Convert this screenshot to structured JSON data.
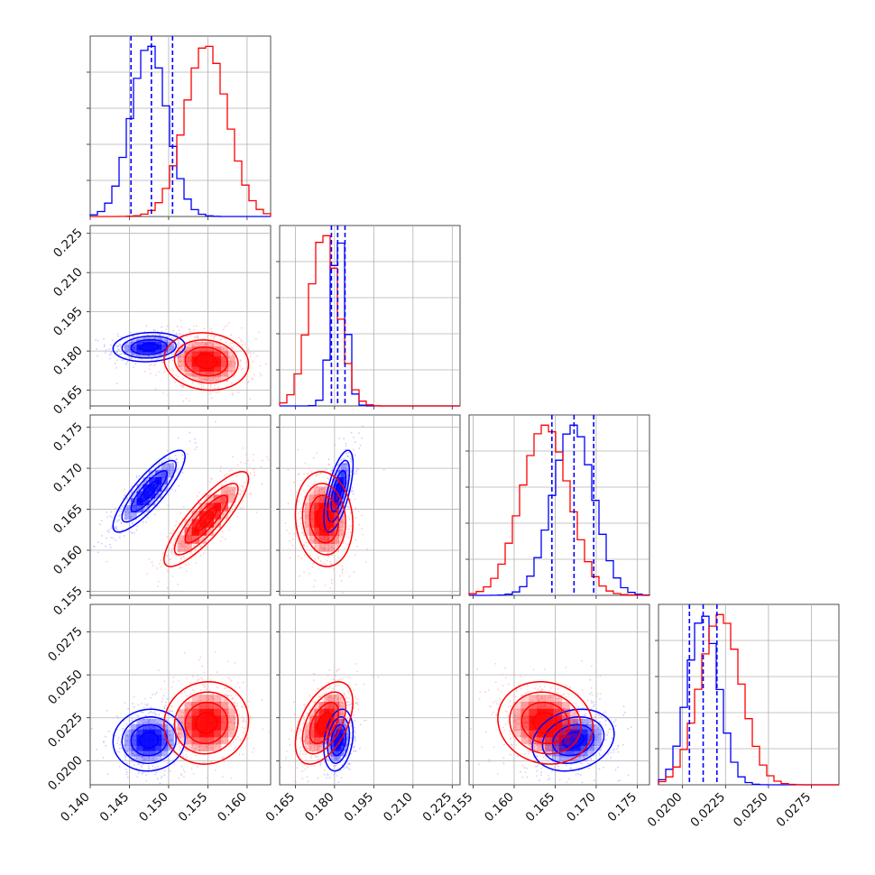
{
  "chart_data": {
    "type": "corner",
    "series": [
      {
        "name": "",
        "color": "#0000ff",
        "mean": [
          0.1475,
          0.1815,
          0.1672,
          0.0212
        ],
        "std": [
          0.0023,
          0.0028,
          0.0025,
          0.0009
        ]
      },
      {
        "name": "",
        "color": "#ff0000",
        "mean": [
          0.1548,
          0.176,
          0.1638,
          0.0222
        ],
        "std": [
          0.0027,
          0.0055,
          0.0029,
          0.0012
        ]
      }
    ],
    "quantile_lines": {
      "color": "#0000ff",
      "values": [
        [
          0.1452,
          0.1478,
          0.1505
        ],
        [
          0.1788,
          0.1812,
          0.184
        ],
        [
          0.1646,
          0.1673,
          0.1697
        ],
        [
          0.0204,
          0.0212,
          0.022
        ]
      ]
    },
    "panels": [
      {
        "row": 1,
        "col": 0,
        "corr_blue": 0.1,
        "corr_red": -0.1
      },
      {
        "row": 2,
        "col": 0,
        "corr_blue": 0.85,
        "corr_red": 0.85
      },
      {
        "row": 2,
        "col": 1,
        "corr_blue": 0.65,
        "corr_red": -0.1
      },
      {
        "row": 3,
        "col": 0,
        "corr_blue": 0.05,
        "corr_red": 0.05
      },
      {
        "row": 3,
        "col": 1,
        "corr_blue": 0.25,
        "corr_red": 0.5
      },
      {
        "row": 3,
        "col": 2,
        "corr_blue": 0.2,
        "corr_red": -0.1
      }
    ],
    "axes": [
      {
        "range": [
          0.14,
          0.163
        ],
        "ticks": [
          "0.140",
          "0.145",
          "0.150",
          "0.155",
          "0.160"
        ]
      },
      {
        "range": [
          0.159,
          0.228
        ],
        "ticks": [
          "0.165",
          "0.180",
          "0.195",
          "0.210",
          "0.225"
        ]
      },
      {
        "range": [
          0.1545,
          0.1765
        ],
        "ticks": [
          "0.155",
          "0.160",
          "0.165",
          "0.170",
          "0.175"
        ]
      },
      {
        "range": [
          0.0186,
          0.0291
        ],
        "ticks": [
          "0.0200",
          "0.0225",
          "0.0250",
          "0.0275"
        ]
      }
    ],
    "y_axes": {
      "1": [
        "0.165",
        "0.180",
        "0.195",
        "0.210",
        "0.225"
      ],
      "2": [
        "0.155",
        "0.160",
        "0.165",
        "0.170",
        "0.175"
      ],
      "3": [
        "0.0200",
        "0.0225",
        "0.0250",
        "0.0275"
      ]
    },
    "x_axes": {
      "0": [
        "0.140",
        "0.145",
        "0.150",
        "0.155",
        "0.160"
      ],
      "1": [
        "0.165",
        "0.180",
        "0.195",
        "0.210",
        "0.225"
      ],
      "2": [
        "0.155",
        "0.160",
        "0.165",
        "0.170",
        "0.175"
      ],
      "3": [
        "0.0200",
        "0.0225",
        "0.0250",
        "0.0275"
      ]
    },
    "x_label_pos": {
      "0": [
        0.14,
        0.145,
        0.15,
        0.155,
        0.16
      ],
      "1": [
        0.165,
        0.18,
        0.195,
        0.21,
        0.225
      ],
      "2": [
        0.155,
        0.16,
        0.165,
        0.17,
        0.175
      ],
      "3": [
        0.02,
        0.0225,
        0.025,
        0.0275
      ]
    },
    "grid": true,
    "xlabel": "",
    "ylabel": "",
    "title": ""
  }
}
